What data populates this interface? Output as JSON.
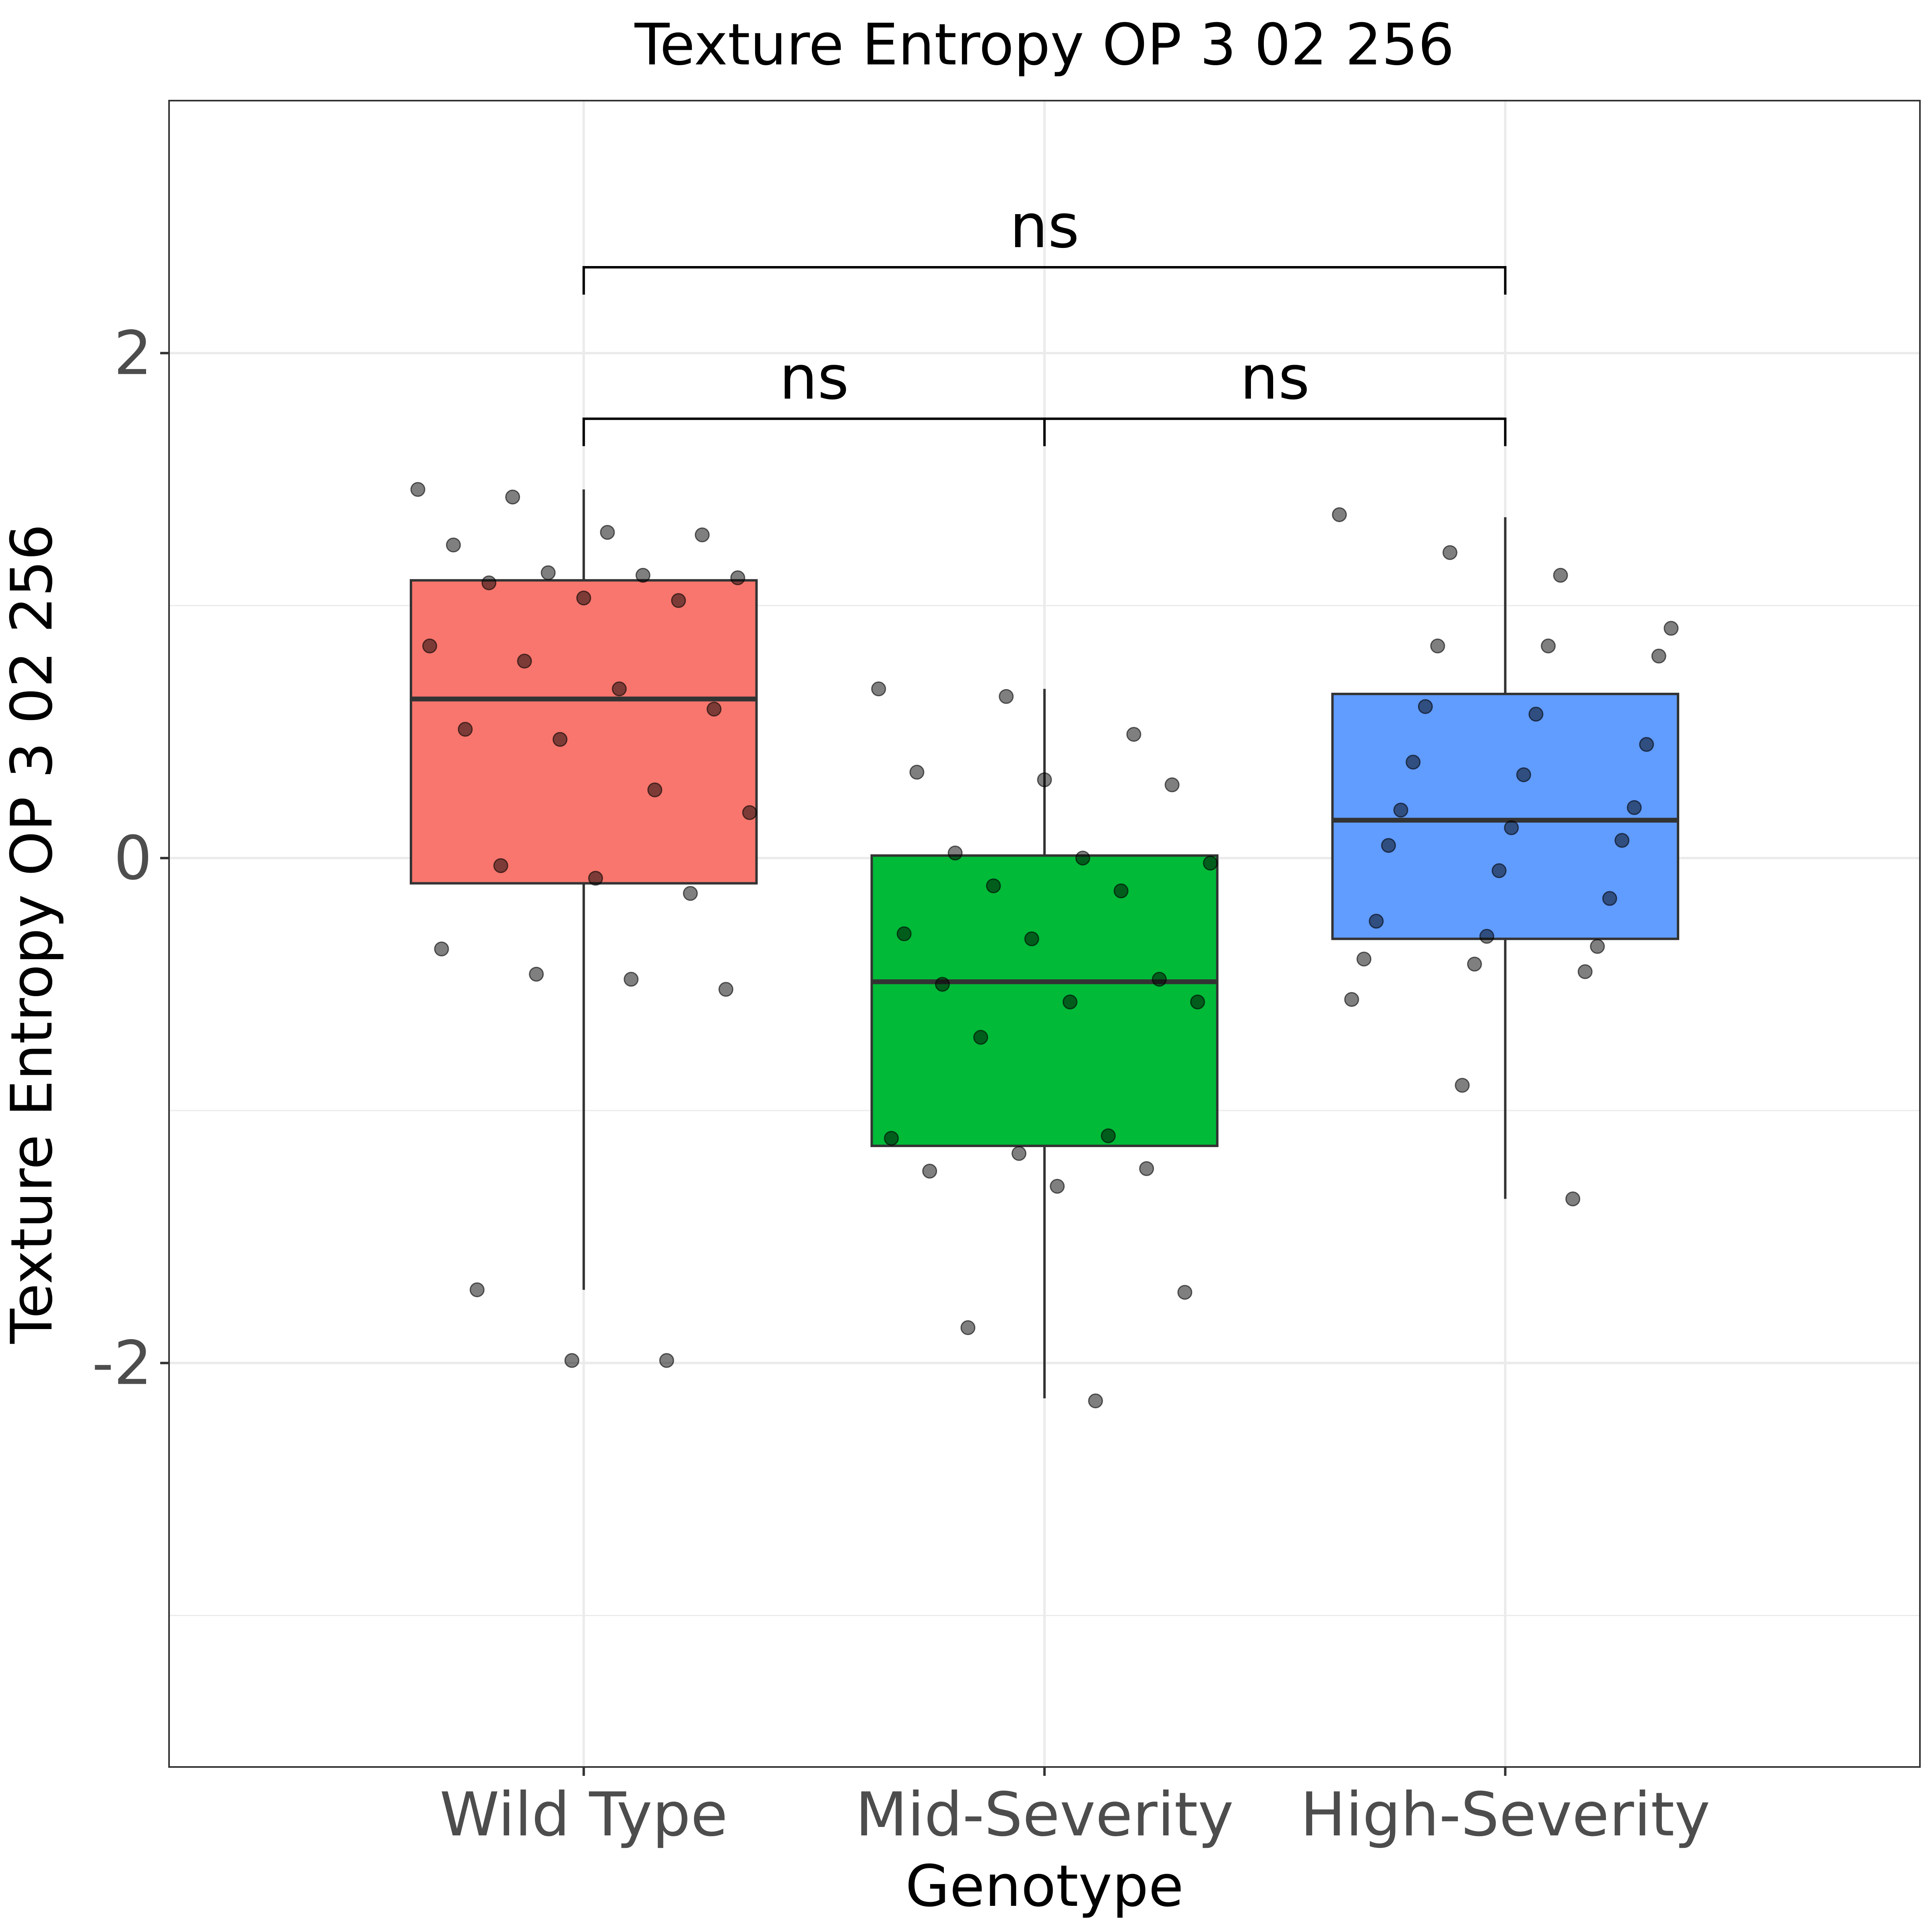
{
  "chart_data": {
    "type": "box",
    "title": "Texture Entropy OP 3 02 256",
    "xlabel": "Genotype",
    "ylabel": "Texture Entropy OP 3 02 256",
    "ylim": [
      -3.6,
      3.0
    ],
    "yticks": [
      -2,
      0,
      2
    ],
    "ytick_labels": [
      "-2",
      "0",
      "2"
    ],
    "grid": true,
    "categories": [
      "Wild Type",
      "Mid-Severity",
      "High-Severity"
    ],
    "colors": {
      "Wild Type": "#f8766d",
      "Mid-Severity": "#00ba38",
      "High-Severity": "#619cff",
      "box_outline": "#333333",
      "point": "#000000",
      "grid": "#ebebeb",
      "bracket": "#000000"
    },
    "boxes": [
      {
        "category": "Wild Type",
        "whisker_low": -1.71,
        "q1": -0.1,
        "median": 0.63,
        "q3": 1.1,
        "whisker_high": 1.46
      },
      {
        "category": "Mid-Severity",
        "whisker_low": -2.14,
        "q1": -1.14,
        "median": -0.49,
        "q3": 0.01,
        "whisker_high": 0.67
      },
      {
        "category": "High-Severity",
        "whisker_low": -1.35,
        "q1": -0.32,
        "median": 0.15,
        "q3": 0.65,
        "whisker_high": 1.35
      }
    ],
    "points": [
      {
        "category": "Wild Type",
        "values": [
          1.46,
          1.43,
          1.29,
          1.28,
          1.24,
          1.13,
          1.12,
          1.11,
          1.09,
          1.03,
          1.02,
          0.84,
          0.78,
          0.67,
          0.59,
          0.51,
          0.47,
          0.27,
          0.18,
          -0.03,
          -0.08,
          -0.14,
          -0.36,
          -0.46,
          -0.48,
          -0.52,
          -1.71,
          -1.99,
          -1.99
        ]
      },
      {
        "category": "Mid-Severity",
        "values": [
          0.67,
          0.64,
          0.49,
          0.34,
          0.31,
          0.29,
          0.02,
          0.0,
          -0.02,
          -0.11,
          -0.13,
          -0.3,
          -0.32,
          -0.48,
          -0.5,
          -0.57,
          -0.57,
          -0.71,
          -1.1,
          -1.11,
          -1.17,
          -1.23,
          -1.24,
          -1.3,
          -1.72,
          -1.86,
          -2.15
        ]
      },
      {
        "category": "High-Severity",
        "values": [
          1.36,
          1.21,
          1.12,
          0.91,
          0.84,
          0.84,
          0.8,
          0.6,
          0.57,
          0.45,
          0.38,
          0.33,
          0.2,
          0.19,
          0.12,
          0.07,
          0.05,
          -0.05,
          -0.16,
          -0.25,
          -0.31,
          -0.35,
          -0.4,
          -0.42,
          -0.45,
          -0.56,
          -0.9,
          -1.35
        ]
      }
    ],
    "comparisons": [
      {
        "from": "Wild Type",
        "to": "Mid-Severity",
        "label": "ns",
        "y": 1.74
      },
      {
        "from": "Mid-Severity",
        "to": "High-Severity",
        "label": "ns",
        "y": 1.74
      },
      {
        "from": "Wild Type",
        "to": "High-Severity",
        "label": "ns",
        "y": 2.34
      }
    ]
  }
}
